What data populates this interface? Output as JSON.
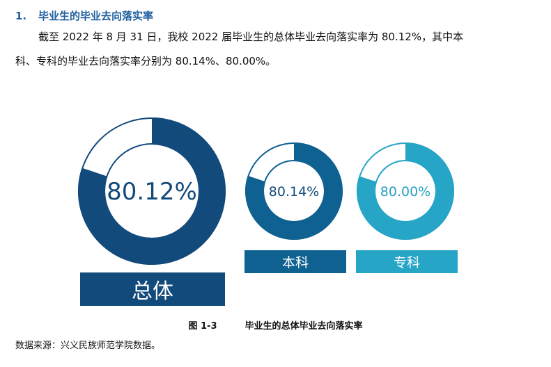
{
  "heading": {
    "number": "1.",
    "title": "毕业生的毕业去向落实率"
  },
  "paragraph": {
    "line1": "截至 2022 年 8 月 31 日，我校 2022 届毕业生的总体毕业去向落实率为 80.12%，其中本",
    "line2": "科、专科的毕业去向落实率分别为 80.14%、80.00%。"
  },
  "chart_data": {
    "type": "donut",
    "items": [
      {
        "label": "总体",
        "value": 80.12,
        "value_text": "80.12%",
        "color": "#134a7c"
      },
      {
        "label": "本科",
        "value": 80.14,
        "value_text": "80.14%",
        "color": "#0e6191"
      },
      {
        "label": "专科",
        "value": 80.0,
        "value_text": "80.00%",
        "color": "#27a5c7"
      }
    ]
  },
  "caption": {
    "figure": "图 1-3",
    "title": "毕业生的总体毕业去向落实率"
  },
  "source": "数据来源：兴义民族师范学院数据。"
}
